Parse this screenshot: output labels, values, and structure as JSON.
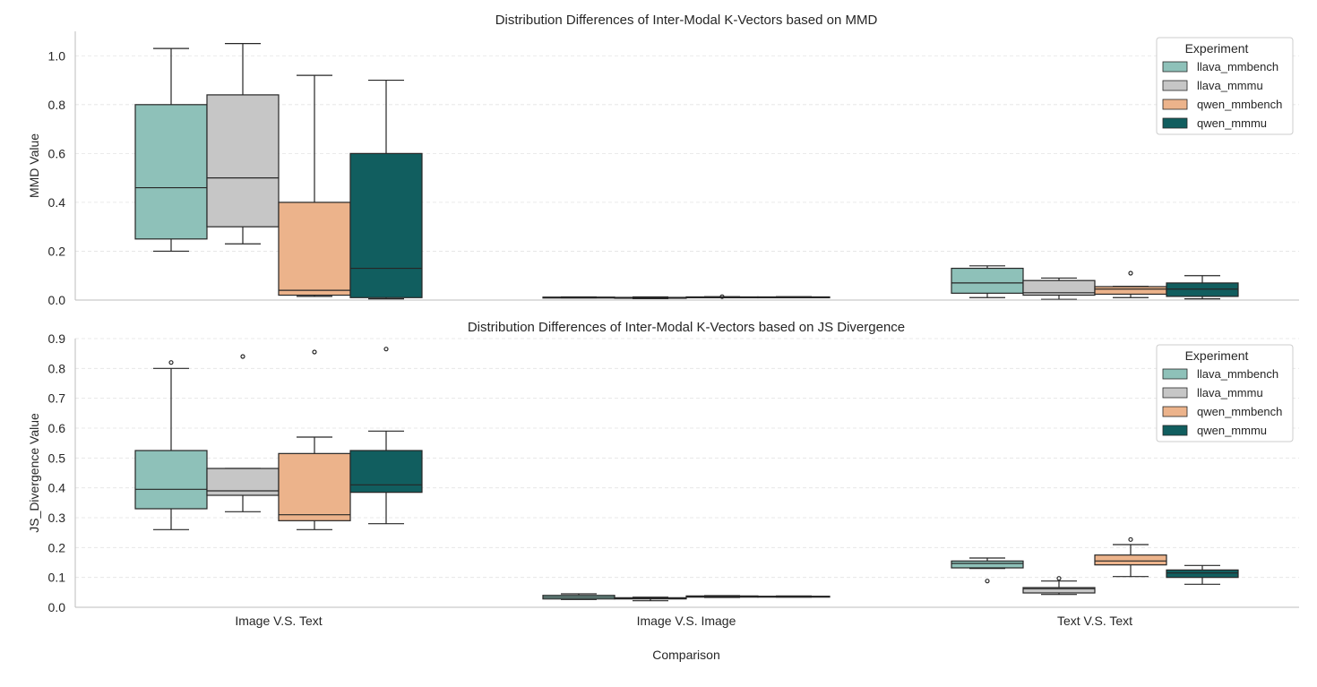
{
  "figure": {
    "xlabel": "Comparison",
    "categories": [
      "Image V.S. Text",
      "Image V.S. Image",
      "Text V.S. Text"
    ]
  },
  "legend": {
    "title": "Experiment",
    "items": [
      {
        "name": "llava_mmbench",
        "color": "#8ec1b9"
      },
      {
        "name": "llava_mmmu",
        "color": "#c6c6c6"
      },
      {
        "name": "qwen_mmbench",
        "color": "#ecb38b"
      },
      {
        "name": "qwen_mmmu",
        "color": "#115e5f"
      }
    ]
  },
  "chart_data": [
    {
      "type": "box",
      "title": "Distribution Differences of Inter-Modal K-Vectors based on MMD",
      "xlabel": "",
      "ylabel": "MMD Value",
      "ylim": [
        0,
        1.1
      ],
      "yticks": [
        "0.0",
        "0.2",
        "0.4",
        "0.6",
        "0.8",
        "1.0"
      ],
      "yticks_values": [
        0,
        0.2,
        0.4,
        0.6,
        0.8,
        1.0
      ],
      "grid": "horizontal dashed",
      "legend_position": "top-right",
      "categories": [
        "Image V.S. Text",
        "Image V.S. Image",
        "Text V.S. Text"
      ],
      "series": [
        {
          "name": "llava_mmbench",
          "boxes": [
            {
              "whislo": 0.2,
              "q1": 0.25,
              "med": 0.46,
              "q3": 0.8,
              "whishi": 1.03,
              "fliers": []
            },
            {
              "whislo": 0.009,
              "q1": 0.01,
              "med": 0.011,
              "q3": 0.012,
              "whishi": 0.013,
              "fliers": []
            },
            {
              "whislo": 0.01,
              "q1": 0.028,
              "med": 0.07,
              "q3": 0.13,
              "whishi": 0.14,
              "fliers": []
            }
          ]
        },
        {
          "name": "llava_mmmu",
          "boxes": [
            {
              "whislo": 0.23,
              "q1": 0.3,
              "med": 0.5,
              "q3": 0.84,
              "whishi": 1.05,
              "fliers": []
            },
            {
              "whislo": 0.006,
              "q1": 0.009,
              "med": 0.01,
              "q3": 0.011,
              "whishi": 0.013,
              "fliers": []
            },
            {
              "whislo": 0.003,
              "q1": 0.02,
              "med": 0.03,
              "q3": 0.08,
              "whishi": 0.09,
              "fliers": []
            }
          ]
        },
        {
          "name": "qwen_mmbench",
          "boxes": [
            {
              "whislo": 0.015,
              "q1": 0.02,
              "med": 0.04,
              "q3": 0.4,
              "whishi": 0.92,
              "fliers": []
            },
            {
              "whislo": 0.01,
              "q1": 0.011,
              "med": 0.012,
              "q3": 0.013,
              "whishi": 0.014,
              "fliers": [
                0.014
              ]
            },
            {
              "whislo": 0.01,
              "q1": 0.024,
              "med": 0.045,
              "q3": 0.055,
              "whishi": 0.056,
              "fliers": [
                0.11
              ]
            }
          ]
        },
        {
          "name": "qwen_mmmu",
          "boxes": [
            {
              "whislo": 0.005,
              "q1": 0.01,
              "med": 0.13,
              "q3": 0.6,
              "whishi": 0.9,
              "fliers": []
            },
            {
              "whislo": 0.01,
              "q1": 0.011,
              "med": 0.012,
              "q3": 0.013,
              "whishi": 0.014,
              "fliers": []
            },
            {
              "whislo": 0.005,
              "q1": 0.015,
              "med": 0.045,
              "q3": 0.07,
              "whishi": 0.1,
              "fliers": []
            }
          ]
        }
      ]
    },
    {
      "type": "box",
      "title": "Distribution Differences of Inter-Modal K-Vectors based on JS Divergence",
      "xlabel": "Comparison",
      "ylabel": "JS_Divergence Value",
      "ylim": [
        0,
        0.9
      ],
      "yticks": [
        "0.0",
        "0.1",
        "0.2",
        "0.3",
        "0.4",
        "0.5",
        "0.6",
        "0.7",
        "0.8",
        "0.9"
      ],
      "yticks_values": [
        0,
        0.1,
        0.2,
        0.3,
        0.4,
        0.5,
        0.6,
        0.7,
        0.8,
        0.9
      ],
      "grid": "horizontal dashed",
      "legend_position": "top-right",
      "categories": [
        "Image V.S. Text",
        "Image V.S. Image",
        "Text V.S. Text"
      ],
      "series": [
        {
          "name": "llava_mmbench",
          "boxes": [
            {
              "whislo": 0.26,
              "q1": 0.33,
              "med": 0.395,
              "q3": 0.525,
              "whishi": 0.8,
              "fliers": [
                0.82
              ]
            },
            {
              "whislo": 0.026,
              "q1": 0.028,
              "med": 0.034,
              "q3": 0.04,
              "whishi": 0.045,
              "fliers": []
            },
            {
              "whislo": 0.13,
              "q1": 0.132,
              "med": 0.147,
              "q3": 0.155,
              "whishi": 0.165,
              "fliers": [
                0.088
              ]
            }
          ]
        },
        {
          "name": "llava_mmmu",
          "boxes": [
            {
              "whislo": 0.32,
              "q1": 0.375,
              "med": 0.39,
              "q3": 0.465,
              "whishi": 0.465,
              "fliers": [
                0.84
              ]
            },
            {
              "whislo": 0.022,
              "q1": 0.028,
              "med": 0.03,
              "q3": 0.032,
              "whishi": 0.034,
              "fliers": []
            },
            {
              "whislo": 0.043,
              "q1": 0.048,
              "med": 0.062,
              "q3": 0.066,
              "whishi": 0.088,
              "fliers": [
                0.097
              ]
            }
          ]
        },
        {
          "name": "qwen_mmbench",
          "boxes": [
            {
              "whislo": 0.26,
              "q1": 0.29,
              "med": 0.31,
              "q3": 0.515,
              "whishi": 0.57,
              "fliers": [
                0.855
              ]
            },
            {
              "whislo": 0.033,
              "q1": 0.034,
              "med": 0.036,
              "q3": 0.038,
              "whishi": 0.039,
              "fliers": []
            },
            {
              "whislo": 0.103,
              "q1": 0.142,
              "med": 0.155,
              "q3": 0.175,
              "whishi": 0.21,
              "fliers": [
                0.227
              ]
            }
          ]
        },
        {
          "name": "qwen_mmmu",
          "boxes": [
            {
              "whislo": 0.28,
              "q1": 0.385,
              "med": 0.41,
              "q3": 0.525,
              "whishi": 0.59,
              "fliers": [
                0.865
              ]
            },
            {
              "whislo": 0.034,
              "q1": 0.035,
              "med": 0.036,
              "q3": 0.037,
              "whishi": 0.038,
              "fliers": []
            },
            {
              "whislo": 0.077,
              "q1": 0.1,
              "med": 0.115,
              "q3": 0.125,
              "whishi": 0.14,
              "fliers": []
            }
          ]
        }
      ]
    }
  ]
}
